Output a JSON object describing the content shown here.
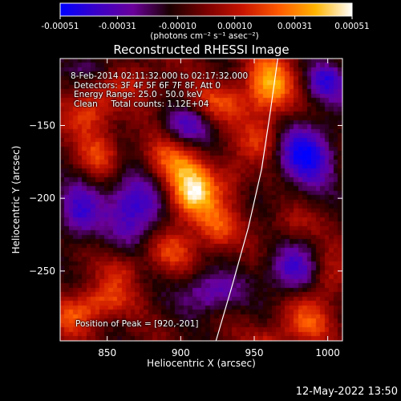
{
  "chart_data": {
    "type": "heatmap",
    "title": "Reconstructed RHESSI Image",
    "xlabel": "Heliocentric X (arcsec)",
    "ylabel": "Heliocentric Y (arcsec)",
    "xlim": [
      818,
      1010
    ],
    "ylim": [
      -298,
      -104
    ],
    "x_ticks": [
      850,
      900,
      950,
      1000
    ],
    "y_ticks": [
      -150,
      -200,
      -250
    ],
    "colorbar": {
      "label": "(photons cm⁻² s⁻¹ asec⁻²)",
      "range": [
        -0.00051,
        0.00051
      ],
      "ticks": [
        "-0.00051",
        "-0.00031",
        "-0.00010",
        "0.00010",
        "0.00031",
        "0.00051"
      ],
      "colormap": [
        "#0000ff",
        "#3b00c8",
        "#6a009a",
        "#1a0000",
        "#7a0000",
        "#c81400",
        "#ff5a00",
        "#ffb400",
        "#ffffff"
      ]
    },
    "info_lines": [
      "8-Feb-2014 02:11:32.000 to 02:17:32.000",
      "Detectors: 3F 4F 5F 6F 7F 8F, Att 0",
      "Energy Range: 25.0 - 50.0 keV",
      "Clean     Total counts: 1.12E+04"
    ],
    "peak_label": "Position of Peak = [920,-201]",
    "peak": [
      920,
      -201
    ],
    "limb_curve": [
      [
        924,
        -298
      ],
      [
        935,
        -260
      ],
      [
        946,
        -220
      ],
      [
        955,
        -180
      ],
      [
        961,
        -140
      ],
      [
        966,
        -104
      ]
    ],
    "emission_blobs": [
      {
        "x": 908,
        "y": -197,
        "sx": 12,
        "sy": 14,
        "amp": 1.0
      },
      {
        "x": 890,
        "y": -175,
        "sx": 14,
        "sy": 12,
        "amp": 0.55
      },
      {
        "x": 925,
        "y": -222,
        "sx": 10,
        "sy": 10,
        "amp": 0.5
      },
      {
        "x": 893,
        "y": -236,
        "sx": 12,
        "sy": 10,
        "amp": 0.45
      },
      {
        "x": 860,
        "y": -250,
        "sx": 10,
        "sy": 9,
        "amp": 0.35
      },
      {
        "x": 838,
        "y": -140,
        "sx": 12,
        "sy": 12,
        "amp": 0.55
      },
      {
        "x": 845,
        "y": -170,
        "sx": 10,
        "sy": 10,
        "amp": 0.45
      },
      {
        "x": 960,
        "y": -122,
        "sx": 12,
        "sy": 16,
        "amp": 0.8
      },
      {
        "x": 925,
        "y": -135,
        "sx": 16,
        "sy": 10,
        "amp": 0.45
      },
      {
        "x": 955,
        "y": -160,
        "sx": 10,
        "sy": 10,
        "amp": 0.4
      },
      {
        "x": 830,
        "y": -280,
        "sx": 12,
        "sy": 10,
        "amp": 0.55
      },
      {
        "x": 850,
        "y": -270,
        "sx": 12,
        "sy": 8,
        "amp": 0.4
      },
      {
        "x": 985,
        "y": -285,
        "sx": 12,
        "sy": 12,
        "amp": 0.5
      },
      {
        "x": 1000,
        "y": -255,
        "sx": 8,
        "sy": 12,
        "amp": 0.35
      },
      {
        "x": 960,
        "y": -300,
        "sx": 10,
        "sy": 8,
        "amp": 0.35
      },
      {
        "x": 975,
        "y": -218,
        "sx": 10,
        "sy": 8,
        "amp": 0.25
      },
      {
        "x": 870,
        "y": -120,
        "sx": 14,
        "sy": 10,
        "amp": 0.3
      },
      {
        "x": 935,
        "y": -185,
        "sx": 8,
        "sy": 12,
        "amp": 0.3
      }
    ],
    "negative_blobs": [
      {
        "x": 870,
        "y": -205,
        "sx": 14,
        "sy": 18,
        "amp": 0.75
      },
      {
        "x": 905,
        "y": -150,
        "sx": 12,
        "sy": 10,
        "amp": 0.55
      },
      {
        "x": 985,
        "y": -170,
        "sx": 14,
        "sy": 16,
        "amp": 0.8
      },
      {
        "x": 975,
        "y": -250,
        "sx": 12,
        "sy": 12,
        "amp": 0.6
      },
      {
        "x": 830,
        "y": -210,
        "sx": 10,
        "sy": 14,
        "amp": 0.6
      },
      {
        "x": 920,
        "y": -265,
        "sx": 14,
        "sy": 10,
        "amp": 0.55
      },
      {
        "x": 1000,
        "y": -120,
        "sx": 10,
        "sy": 10,
        "amp": 0.6
      },
      {
        "x": 840,
        "y": -110,
        "sx": 10,
        "sy": 6,
        "amp": 0.4
      }
    ]
  },
  "footer": {
    "timestamp": "12-May-2022 13:50"
  }
}
